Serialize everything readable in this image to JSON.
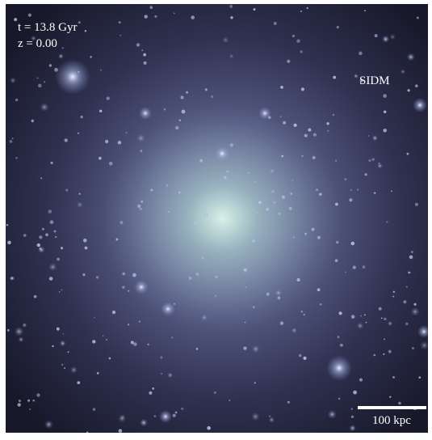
{
  "labels": {
    "time": "t = 13.8 Gyr",
    "redshift": "z = 0.00",
    "model": "SIDM",
    "scale_bar": "100 kpc"
  }
}
